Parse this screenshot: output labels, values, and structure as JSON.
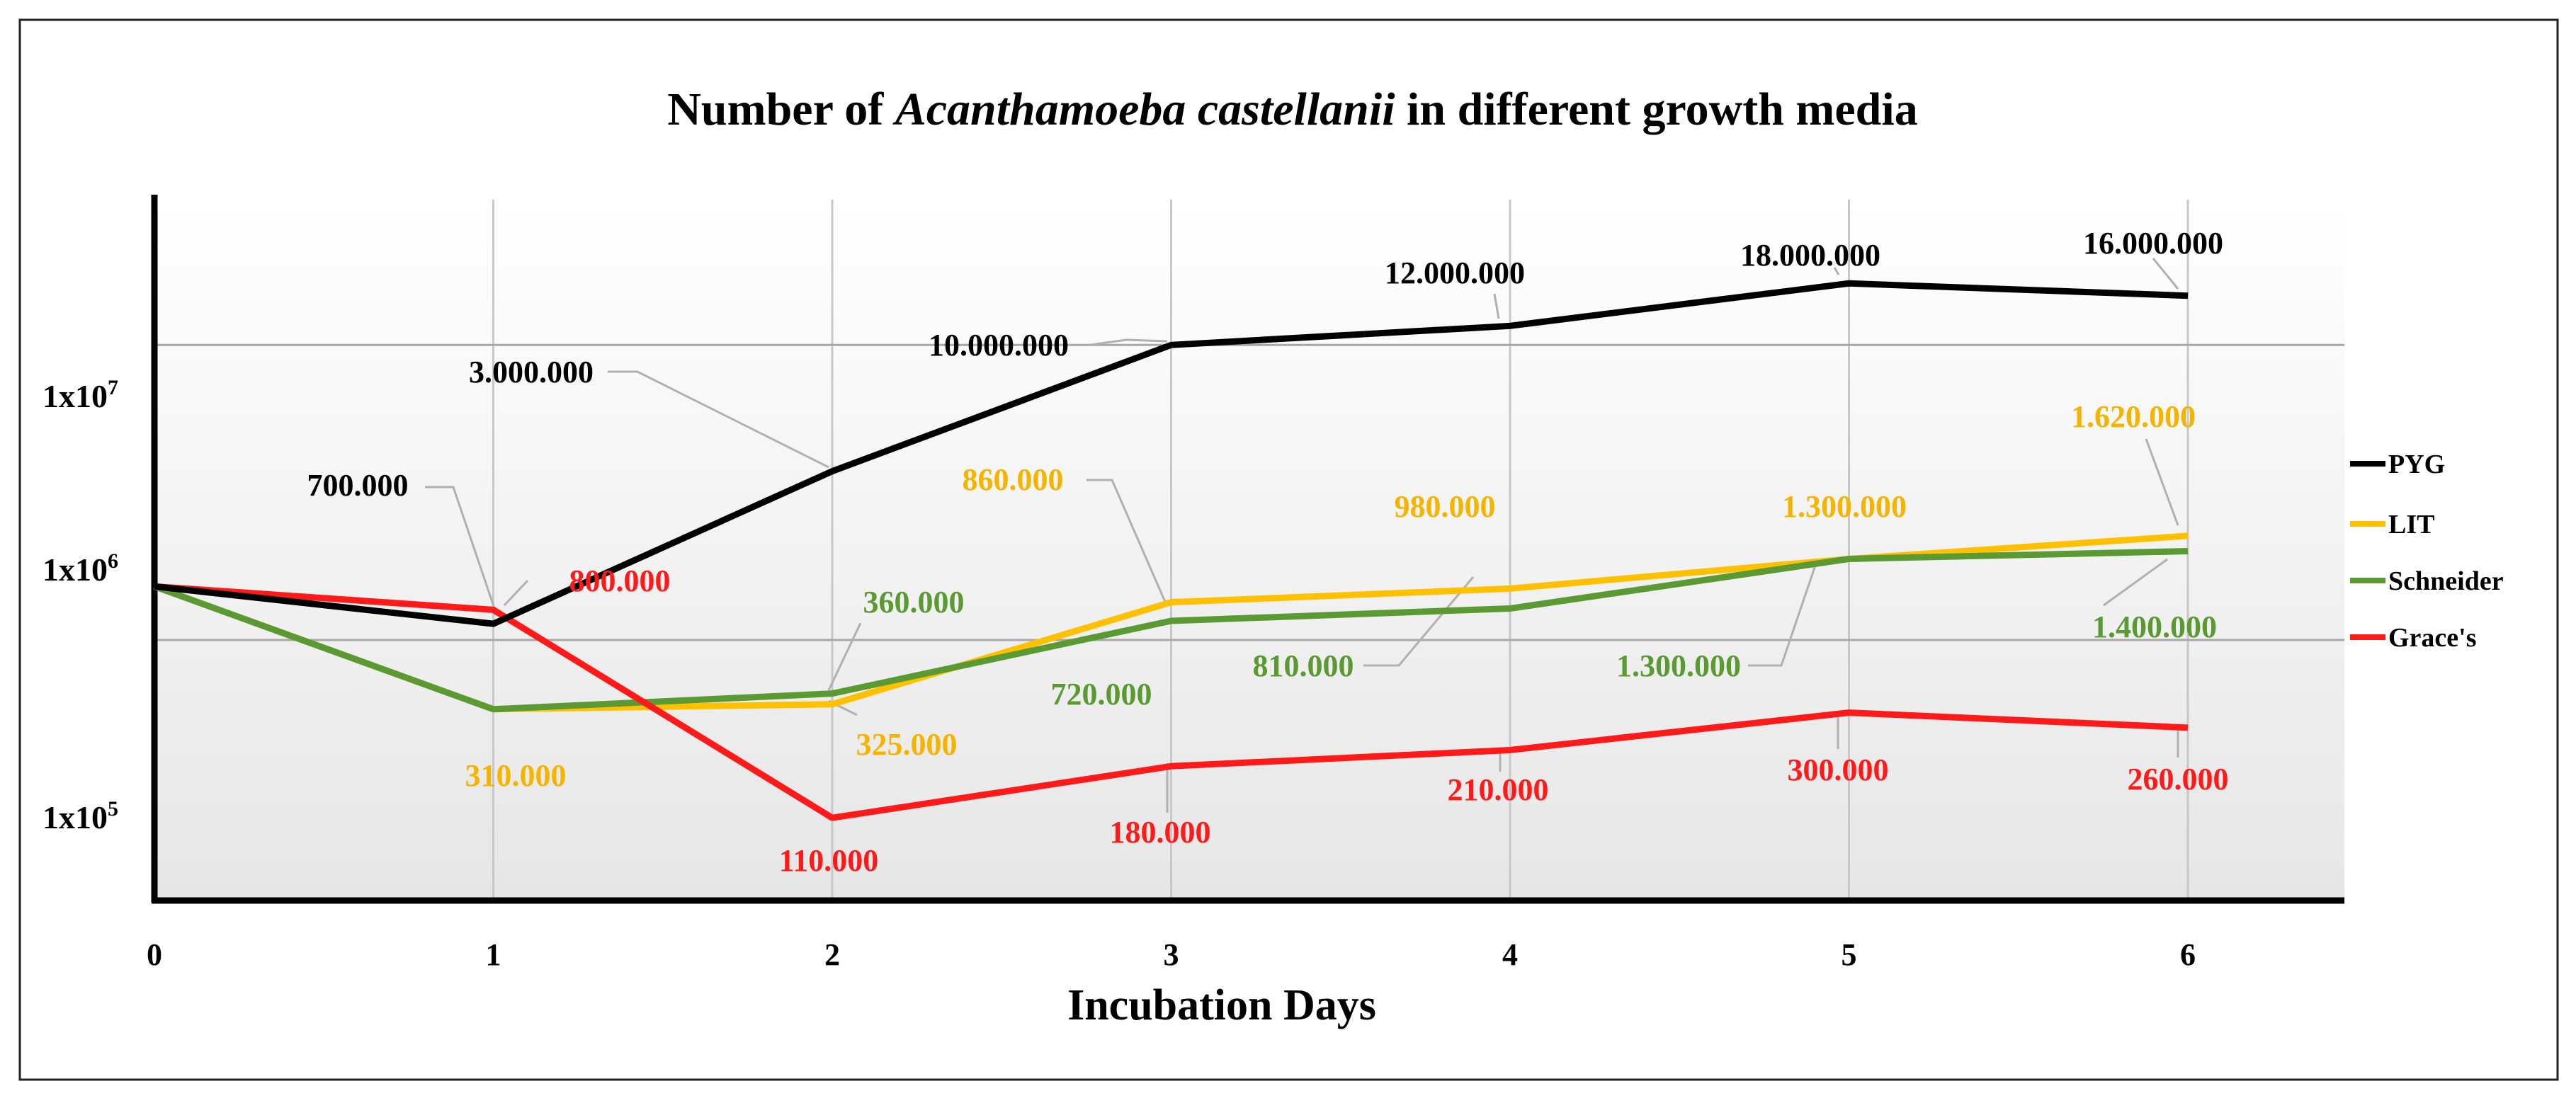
{
  "chart_data": {
    "type": "line",
    "title_parts": [
      {
        "text": "Number of ",
        "italic": false
      },
      {
        "text": "Acanthamoeba castellanii",
        "italic": true
      },
      {
        "text": " in different growth media",
        "italic": false
      }
    ],
    "title": "Number of Acanthamoeba castellanii in different growth media",
    "xlabel": "Incubation Days",
    "ylabel": "",
    "y_scale": "log",
    "ylim": [
      50000,
      40000000
    ],
    "xlim": [
      0,
      6.5
    ],
    "categories": [
      0,
      1,
      2,
      3,
      4,
      5,
      6
    ],
    "y_ticks": [
      {
        "value": 10000000,
        "base": "1x10",
        "exp": "7"
      },
      {
        "value": 1000000,
        "base": "1x10",
        "exp": "6"
      },
      {
        "value": 100000,
        "base": "1x10",
        "exp": "5"
      }
    ],
    "gridlines": true,
    "legend_position": "right",
    "series": [
      {
        "name": "PYG",
        "color": "#000000",
        "values": [
          1000000,
          700000,
          3000000,
          10000000,
          12000000,
          18000000,
          16000000
        ],
        "labels": [
          "",
          "700.000",
          "3.000.000",
          "10.000.000",
          "12.000.000",
          "18.000.000",
          "16.000.000"
        ]
      },
      {
        "name": "LIT",
        "color": "#FFC000",
        "values": [
          1000000,
          310000,
          325000,
          860000,
          980000,
          1300000,
          1620000
        ],
        "labels": [
          "",
          "310.000",
          "325.000",
          "860.000",
          "980.000",
          "1.300.000",
          "1.620.000"
        ]
      },
      {
        "name": "Schneider",
        "color": "#5B9A32",
        "values": [
          1000000,
          310000,
          360000,
          720000,
          810000,
          1300000,
          1400000
        ],
        "labels": [
          "",
          "",
          "360.000",
          "720.000",
          "810.000",
          "1.300.000",
          "1.400.000"
        ]
      },
      {
        "name": "Grace's",
        "color": "#FF1A1A",
        "values": [
          1000000,
          800000,
          110000,
          180000,
          210000,
          300000,
          260000
        ],
        "labels": [
          "",
          "800.000",
          "110.000",
          "180.000",
          "210.000",
          "300.000",
          "260.000"
        ]
      }
    ]
  }
}
